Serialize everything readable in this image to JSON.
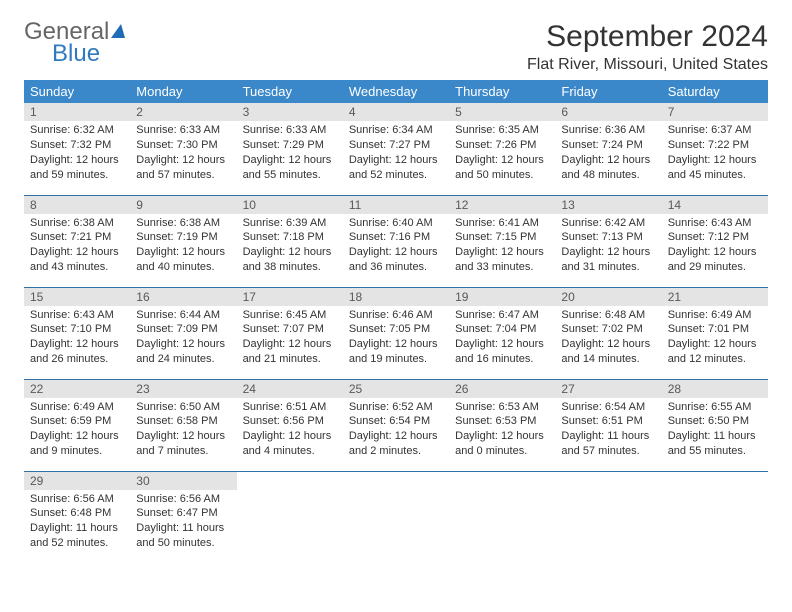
{
  "logo": {
    "general": "General",
    "blue": "Blue"
  },
  "title": "September 2024",
  "location": "Flat River, Missouri, United States",
  "colors": {
    "header_bg": "#3a88c9",
    "header_text": "#ffffff",
    "daynum_bg": "#e4e4e4",
    "row_border": "#2f6fa8",
    "logo_blue": "#2f7ac0",
    "body_text": "#333333"
  },
  "weekdays": [
    "Sunday",
    "Monday",
    "Tuesday",
    "Wednesday",
    "Thursday",
    "Friday",
    "Saturday"
  ],
  "days": [
    {
      "n": 1,
      "sr": "6:32 AM",
      "ss": "7:32 PM",
      "dh": 12,
      "dm": 59
    },
    {
      "n": 2,
      "sr": "6:33 AM",
      "ss": "7:30 PM",
      "dh": 12,
      "dm": 57
    },
    {
      "n": 3,
      "sr": "6:33 AM",
      "ss": "7:29 PM",
      "dh": 12,
      "dm": 55
    },
    {
      "n": 4,
      "sr": "6:34 AM",
      "ss": "7:27 PM",
      "dh": 12,
      "dm": 52
    },
    {
      "n": 5,
      "sr": "6:35 AM",
      "ss": "7:26 PM",
      "dh": 12,
      "dm": 50
    },
    {
      "n": 6,
      "sr": "6:36 AM",
      "ss": "7:24 PM",
      "dh": 12,
      "dm": 48
    },
    {
      "n": 7,
      "sr": "6:37 AM",
      "ss": "7:22 PM",
      "dh": 12,
      "dm": 45
    },
    {
      "n": 8,
      "sr": "6:38 AM",
      "ss": "7:21 PM",
      "dh": 12,
      "dm": 43
    },
    {
      "n": 9,
      "sr": "6:38 AM",
      "ss": "7:19 PM",
      "dh": 12,
      "dm": 40
    },
    {
      "n": 10,
      "sr": "6:39 AM",
      "ss": "7:18 PM",
      "dh": 12,
      "dm": 38
    },
    {
      "n": 11,
      "sr": "6:40 AM",
      "ss": "7:16 PM",
      "dh": 12,
      "dm": 36
    },
    {
      "n": 12,
      "sr": "6:41 AM",
      "ss": "7:15 PM",
      "dh": 12,
      "dm": 33
    },
    {
      "n": 13,
      "sr": "6:42 AM",
      "ss": "7:13 PM",
      "dh": 12,
      "dm": 31
    },
    {
      "n": 14,
      "sr": "6:43 AM",
      "ss": "7:12 PM",
      "dh": 12,
      "dm": 29
    },
    {
      "n": 15,
      "sr": "6:43 AM",
      "ss": "7:10 PM",
      "dh": 12,
      "dm": 26
    },
    {
      "n": 16,
      "sr": "6:44 AM",
      "ss": "7:09 PM",
      "dh": 12,
      "dm": 24
    },
    {
      "n": 17,
      "sr": "6:45 AM",
      "ss": "7:07 PM",
      "dh": 12,
      "dm": 21
    },
    {
      "n": 18,
      "sr": "6:46 AM",
      "ss": "7:05 PM",
      "dh": 12,
      "dm": 19
    },
    {
      "n": 19,
      "sr": "6:47 AM",
      "ss": "7:04 PM",
      "dh": 12,
      "dm": 16
    },
    {
      "n": 20,
      "sr": "6:48 AM",
      "ss": "7:02 PM",
      "dh": 12,
      "dm": 14
    },
    {
      "n": 21,
      "sr": "6:49 AM",
      "ss": "7:01 PM",
      "dh": 12,
      "dm": 12
    },
    {
      "n": 22,
      "sr": "6:49 AM",
      "ss": "6:59 PM",
      "dh": 12,
      "dm": 9
    },
    {
      "n": 23,
      "sr": "6:50 AM",
      "ss": "6:58 PM",
      "dh": 12,
      "dm": 7
    },
    {
      "n": 24,
      "sr": "6:51 AM",
      "ss": "6:56 PM",
      "dh": 12,
      "dm": 4
    },
    {
      "n": 25,
      "sr": "6:52 AM",
      "ss": "6:54 PM",
      "dh": 12,
      "dm": 2
    },
    {
      "n": 26,
      "sr": "6:53 AM",
      "ss": "6:53 PM",
      "dh": 12,
      "dm": 0
    },
    {
      "n": 27,
      "sr": "6:54 AM",
      "ss": "6:51 PM",
      "dh": 11,
      "dm": 57
    },
    {
      "n": 28,
      "sr": "6:55 AM",
      "ss": "6:50 PM",
      "dh": 11,
      "dm": 55
    },
    {
      "n": 29,
      "sr": "6:56 AM",
      "ss": "6:48 PM",
      "dh": 11,
      "dm": 52
    },
    {
      "n": 30,
      "sr": "6:56 AM",
      "ss": "6:47 PM",
      "dh": 11,
      "dm": 50
    }
  ],
  "layout": {
    "first_weekday_index": 0,
    "rows": 5,
    "cols": 7,
    "font_size_body": 11,
    "font_size_header": 13,
    "font_size_title": 30,
    "font_size_location": 16
  }
}
